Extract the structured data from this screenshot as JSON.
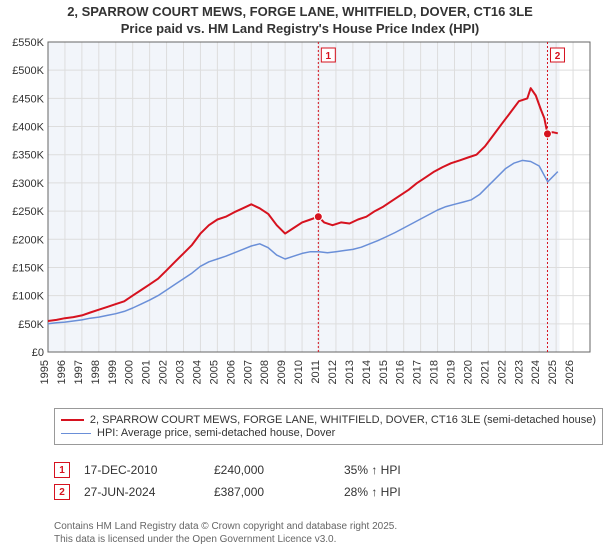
{
  "title_line1": "2, SPARROW COURT MEWS, FORGE LANE, WHITFIELD, DOVER, CT16 3LE",
  "title_line2": "Price paid vs. HM Land Registry's House Price Index (HPI)",
  "chart": {
    "type": "line",
    "background_color": "#ffffff",
    "plot_background_color": "#f2f5fa",
    "future_zone_color": "#ffffff",
    "grid_color": "#dddddd",
    "axis_color": "#666666",
    "label_color": "#333333",
    "label_fontsize": 11,
    "x_axis": {
      "min": 1995,
      "max": 2027,
      "ticks": [
        1995,
        1996,
        1997,
        1998,
        1999,
        2000,
        2001,
        2002,
        2003,
        2004,
        2005,
        2006,
        2007,
        2008,
        2009,
        2010,
        2011,
        2012,
        2013,
        2014,
        2015,
        2016,
        2017,
        2018,
        2019,
        2020,
        2021,
        2022,
        2023,
        2024,
        2025,
        2026
      ]
    },
    "y_axis": {
      "min": 0,
      "max": 550000,
      "tick_step": 50000,
      "tick_format_prefix": "£",
      "tick_format_suffix": "K",
      "tick_labels": [
        "£0",
        "£50K",
        "£100K",
        "£150K",
        "£200K",
        "£250K",
        "£300K",
        "£350K",
        "£400K",
        "£450K",
        "£500K",
        "£550K"
      ]
    },
    "future_start_year": 2025.2,
    "series": [
      {
        "name": "price_paid",
        "label": "2, SPARROW COURT MEWS, FORGE LANE, WHITFIELD, DOVER, CT16 3LE (semi-detached house)",
        "color": "#d6121f",
        "line_width": 2,
        "data": [
          [
            1995.0,
            55
          ],
          [
            1995.5,
            57
          ],
          [
            1996.0,
            60
          ],
          [
            1996.5,
            62
          ],
          [
            1997.0,
            65
          ],
          [
            1997.5,
            70
          ],
          [
            1998.0,
            75
          ],
          [
            1998.5,
            80
          ],
          [
            1999.0,
            85
          ],
          [
            1999.5,
            90
          ],
          [
            2000.0,
            100
          ],
          [
            2000.5,
            110
          ],
          [
            2001.0,
            120
          ],
          [
            2001.5,
            130
          ],
          [
            2002.0,
            145
          ],
          [
            2002.5,
            160
          ],
          [
            2003.0,
            175
          ],
          [
            2003.5,
            190
          ],
          [
            2004.0,
            210
          ],
          [
            2004.5,
            225
          ],
          [
            2005.0,
            235
          ],
          [
            2005.5,
            240
          ],
          [
            2006.0,
            248
          ],
          [
            2006.5,
            255
          ],
          [
            2007.0,
            262
          ],
          [
            2007.5,
            255
          ],
          [
            2008.0,
            245
          ],
          [
            2008.5,
            225
          ],
          [
            2009.0,
            210
          ],
          [
            2009.5,
            220
          ],
          [
            2010.0,
            230
          ],
          [
            2010.5,
            235
          ],
          [
            2010.96,
            240
          ],
          [
            2011.3,
            230
          ],
          [
            2011.8,
            225
          ],
          [
            2012.3,
            230
          ],
          [
            2012.8,
            228
          ],
          [
            2013.3,
            235
          ],
          [
            2013.8,
            240
          ],
          [
            2014.3,
            250
          ],
          [
            2014.8,
            258
          ],
          [
            2015.3,
            268
          ],
          [
            2015.8,
            278
          ],
          [
            2016.3,
            288
          ],
          [
            2016.8,
            300
          ],
          [
            2017.3,
            310
          ],
          [
            2017.8,
            320
          ],
          [
            2018.3,
            328
          ],
          [
            2018.8,
            335
          ],
          [
            2019.3,
            340
          ],
          [
            2019.8,
            345
          ],
          [
            2020.3,
            350
          ],
          [
            2020.8,
            365
          ],
          [
            2021.3,
            385
          ],
          [
            2021.8,
            405
          ],
          [
            2022.3,
            425
          ],
          [
            2022.8,
            445
          ],
          [
            2023.3,
            450
          ],
          [
            2023.5,
            468
          ],
          [
            2023.8,
            455
          ],
          [
            2024.1,
            430
          ],
          [
            2024.3,
            415
          ],
          [
            2024.49,
            387
          ],
          [
            2024.8,
            390
          ],
          [
            2025.1,
            388
          ]
        ]
      },
      {
        "name": "hpi",
        "label": "HPI: Average price, semi-detached house, Dover",
        "color": "#6a8fd8",
        "line_width": 1.5,
        "data": [
          [
            1995.0,
            50
          ],
          [
            1995.5,
            52
          ],
          [
            1996.0,
            53
          ],
          [
            1996.5,
            55
          ],
          [
            1997.0,
            57
          ],
          [
            1997.5,
            60
          ],
          [
            1998.0,
            62
          ],
          [
            1998.5,
            65
          ],
          [
            1999.0,
            68
          ],
          [
            1999.5,
            72
          ],
          [
            2000.0,
            78
          ],
          [
            2000.5,
            85
          ],
          [
            2001.0,
            92
          ],
          [
            2001.5,
            100
          ],
          [
            2002.0,
            110
          ],
          [
            2002.5,
            120
          ],
          [
            2003.0,
            130
          ],
          [
            2003.5,
            140
          ],
          [
            2004.0,
            152
          ],
          [
            2004.5,
            160
          ],
          [
            2005.0,
            165
          ],
          [
            2005.5,
            170
          ],
          [
            2006.0,
            176
          ],
          [
            2006.5,
            182
          ],
          [
            2007.0,
            188
          ],
          [
            2007.5,
            192
          ],
          [
            2008.0,
            185
          ],
          [
            2008.5,
            172
          ],
          [
            2009.0,
            165
          ],
          [
            2009.5,
            170
          ],
          [
            2010.0,
            175
          ],
          [
            2010.5,
            178
          ],
          [
            2011.0,
            178
          ],
          [
            2011.5,
            176
          ],
          [
            2012.0,
            178
          ],
          [
            2012.5,
            180
          ],
          [
            2013.0,
            182
          ],
          [
            2013.5,
            186
          ],
          [
            2014.0,
            192
          ],
          [
            2014.5,
            198
          ],
          [
            2015.0,
            205
          ],
          [
            2015.5,
            212
          ],
          [
            2016.0,
            220
          ],
          [
            2016.5,
            228
          ],
          [
            2017.0,
            236
          ],
          [
            2017.5,
            244
          ],
          [
            2018.0,
            252
          ],
          [
            2018.5,
            258
          ],
          [
            2019.0,
            262
          ],
          [
            2019.5,
            266
          ],
          [
            2020.0,
            270
          ],
          [
            2020.5,
            280
          ],
          [
            2021.0,
            295
          ],
          [
            2021.5,
            310
          ],
          [
            2022.0,
            325
          ],
          [
            2022.5,
            335
          ],
          [
            2023.0,
            340
          ],
          [
            2023.5,
            338
          ],
          [
            2024.0,
            330
          ],
          [
            2024.5,
            302
          ],
          [
            2025.1,
            320
          ]
        ]
      }
    ],
    "transactions": [
      {
        "n": 1,
        "year": 2010.96,
        "price": 240,
        "box_color": "#d6121f"
      },
      {
        "n": 2,
        "year": 2024.49,
        "price": 387,
        "box_color": "#d6121f"
      }
    ]
  },
  "legend": {
    "items": [
      {
        "label": "2, SPARROW COURT MEWS, FORGE LANE, WHITFIELD, DOVER, CT16 3LE (semi-detached house)",
        "color": "#d6121f",
        "width": 2
      },
      {
        "label": "HPI: Average price, semi-detached house, Dover",
        "color": "#6a8fd8",
        "width": 1.5
      }
    ]
  },
  "marker_rows": [
    {
      "n": "1",
      "color": "#d6121f",
      "date": "17-DEC-2010",
      "price": "£240,000",
      "pct": "35% ↑ HPI"
    },
    {
      "n": "2",
      "color": "#d6121f",
      "date": "27-JUN-2024",
      "price": "£387,000",
      "pct": "28% ↑ HPI"
    }
  ],
  "footer_line1": "Contains HM Land Registry data © Crown copyright and database right 2025.",
  "footer_line2": "This data is licensed under the Open Government Licence v3.0."
}
